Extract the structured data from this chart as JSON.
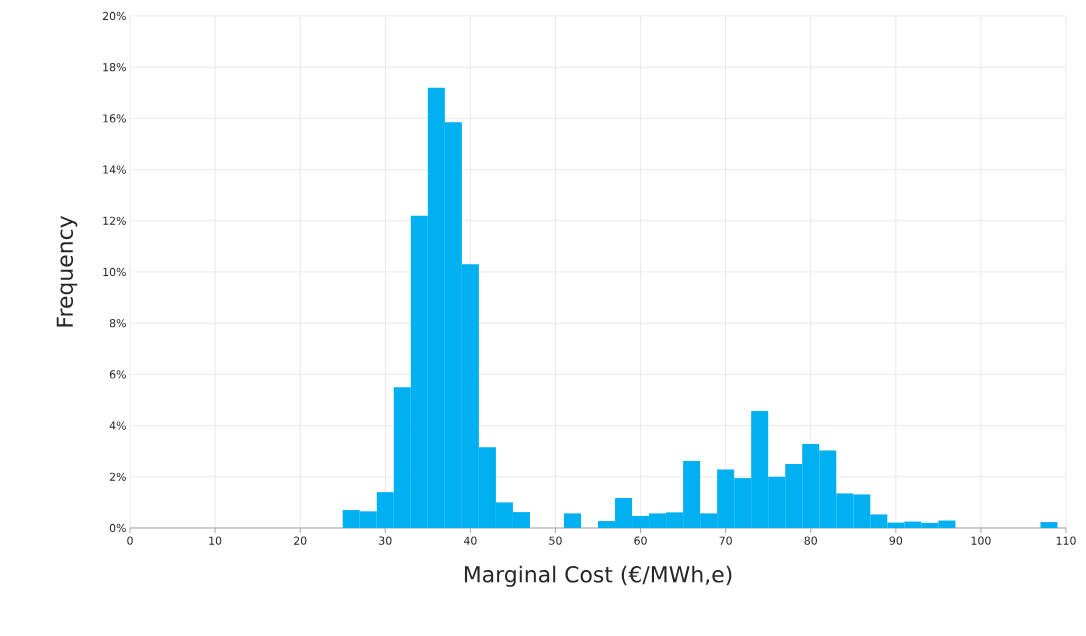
{
  "chart_data": {
    "type": "histogram",
    "xlabel": "Marginal Cost (€/MWh,e)",
    "ylabel": "Frequency",
    "bins": [
      25,
      27,
      29,
      31,
      33,
      35,
      37,
      39,
      41,
      43,
      45,
      47,
      49,
      51,
      53,
      55,
      57,
      59,
      61,
      63,
      65,
      67,
      69,
      71,
      73,
      75,
      77,
      79,
      81,
      83,
      85,
      87,
      89,
      91,
      93,
      95,
      97,
      99,
      101,
      103,
      105,
      107,
      109
    ],
    "values": [
      0.7,
      0.65,
      1.4,
      5.5,
      12.2,
      17.2,
      15.85,
      10.3,
      3.15,
      1.0,
      0.62,
      0,
      0,
      0.57,
      0,
      0.27,
      1.17,
      0.47,
      0.57,
      0.61,
      2.62,
      0.57,
      2.28,
      1.95,
      4.57,
      2.0,
      2.5,
      3.28,
      3.03,
      1.35,
      1.31,
      0.53,
      0.21,
      0.25,
      0.2,
      0.29,
      0,
      0,
      0,
      0,
      0,
      0.23
    ],
    "color": "#00b0f0",
    "xlim": [
      0,
      110
    ],
    "xticks": [
      0,
      10,
      20,
      30,
      40,
      50,
      60,
      70,
      80,
      90,
      100,
      110
    ],
    "ylim": [
      0,
      20
    ],
    "yticks": [
      {
        "value": 0,
        "label": "0%"
      },
      {
        "value": 2,
        "label": "2%"
      },
      {
        "value": 4,
        "label": "4%"
      },
      {
        "value": 6,
        "label": "6%"
      },
      {
        "value": 8,
        "label": "8%"
      },
      {
        "value": 10,
        "label": "10%"
      },
      {
        "value": 12,
        "label": "12%"
      },
      {
        "value": 14,
        "label": "14%"
      },
      {
        "value": 16,
        "label": "16%"
      },
      {
        "value": 18,
        "label": "18%"
      },
      {
        "value": 20,
        "label": "20%"
      }
    ],
    "grid": true
  }
}
